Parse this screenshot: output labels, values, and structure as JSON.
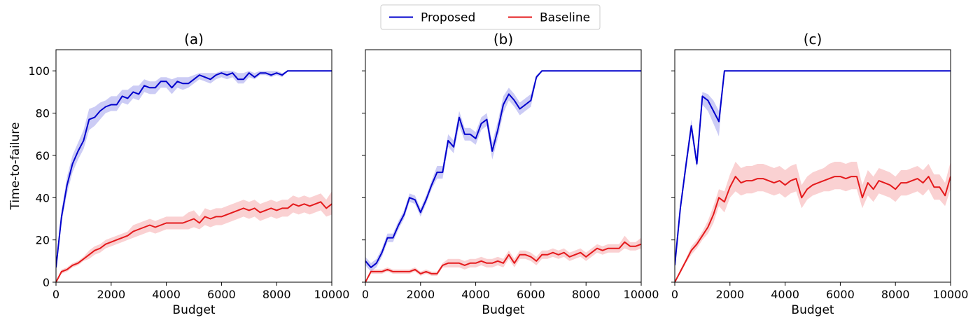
{
  "legend": {
    "entries": [
      {
        "name": "Proposed",
        "color": "#0000cc"
      },
      {
        "name": "Baseline",
        "color": "#e41a1c"
      }
    ],
    "placement": "top-center"
  },
  "chart_data": [
    {
      "type": "line",
      "title": "(a)",
      "xlabel": "Budget",
      "ylabel": "Time-to-failure",
      "xlim": [
        0,
        10000
      ],
      "ylim": [
        0,
        110
      ],
      "xticks": [
        0,
        2000,
        4000,
        6000,
        8000,
        10000
      ],
      "yticks": [
        0,
        20,
        40,
        60,
        80,
        100
      ],
      "series": [
        {
          "name": "Proposed",
          "color": "#0000cc",
          "x": [
            0,
            200,
            400,
            600,
            800,
            1000,
            1200,
            1400,
            1600,
            1800,
            2000,
            2200,
            2400,
            2600,
            2800,
            3000,
            3200,
            3400,
            3600,
            3800,
            4000,
            4200,
            4400,
            4600,
            4800,
            5000,
            5200,
            5400,
            5600,
            5800,
            6000,
            6200,
            6400,
            6600,
            6800,
            7000,
            7200,
            7400,
            7600,
            7800,
            8000,
            8200,
            8400,
            10000
          ],
          "y": [
            7,
            31,
            46,
            56,
            62,
            67,
            77,
            78,
            81,
            83,
            84,
            84,
            88,
            87,
            90,
            89,
            93,
            92,
            92,
            95,
            95,
            92,
            95,
            94,
            94,
            96,
            98,
            97,
            96,
            98,
            99,
            98,
            99,
            96,
            96,
            99,
            97,
            99,
            99,
            98,
            99,
            98,
            100,
            100
          ],
          "lower": [
            5,
            28,
            42,
            52,
            58,
            63,
            72,
            74,
            77,
            80,
            81,
            81,
            85,
            84,
            87,
            86,
            90,
            89,
            89,
            92,
            92,
            89,
            92,
            91,
            92,
            94,
            96,
            95,
            94,
            96,
            97,
            96,
            97,
            94,
            94,
            97,
            96,
            98,
            98,
            97,
            98,
            97,
            100,
            100
          ],
          "upper": [
            9,
            34,
            50,
            60,
            66,
            72,
            82,
            83,
            85,
            86,
            88,
            88,
            91,
            91,
            93,
            93,
            96,
            95,
            95,
            97,
            97,
            96,
            97,
            97,
            97,
            98,
            99,
            99,
            99,
            99,
            100,
            100,
            100,
            99,
            99,
            100,
            99,
            100,
            100,
            100,
            100,
            99,
            100,
            100
          ]
        },
        {
          "name": "Baseline",
          "color": "#e41a1c",
          "x": [
            0,
            200,
            400,
            600,
            800,
            1000,
            1200,
            1400,
            1600,
            1800,
            2000,
            2200,
            2400,
            2600,
            2800,
            3000,
            3200,
            3400,
            3600,
            3800,
            4000,
            4200,
            4400,
            4600,
            4800,
            5000,
            5200,
            5400,
            5600,
            5800,
            6000,
            6200,
            6400,
            6600,
            6800,
            7000,
            7200,
            7400,
            7600,
            7800,
            8000,
            8200,
            8400,
            8600,
            8800,
            9000,
            9200,
            9400,
            9600,
            9800,
            10000
          ],
          "y": [
            0,
            5,
            6,
            8,
            9,
            11,
            13,
            15,
            16,
            18,
            19,
            20,
            21,
            22,
            24,
            25,
            26,
            27,
            26,
            27,
            28,
            28,
            28,
            28,
            29,
            30,
            28,
            31,
            30,
            31,
            31,
            32,
            33,
            34,
            35,
            34,
            35,
            33,
            34,
            35,
            34,
            35,
            35,
            37,
            36,
            37,
            36,
            37,
            38,
            35,
            37
          ],
          "lower": [
            0,
            4,
            5,
            7,
            8,
            10,
            11,
            13,
            14,
            16,
            17,
            18,
            19,
            20,
            21,
            22,
            23,
            24,
            23,
            24,
            25,
            25,
            25,
            25,
            25,
            26,
            25,
            27,
            26,
            27,
            27,
            28,
            29,
            30,
            31,
            30,
            31,
            29,
            30,
            31,
            30,
            31,
            31,
            33,
            32,
            33,
            32,
            33,
            34,
            31,
            32
          ],
          "upper": [
            0,
            6,
            7,
            9,
            10,
            12,
            15,
            17,
            18,
            20,
            21,
            22,
            23,
            24,
            27,
            28,
            29,
            30,
            29,
            30,
            31,
            31,
            31,
            31,
            33,
            34,
            31,
            35,
            34,
            35,
            35,
            36,
            37,
            38,
            39,
            38,
            39,
            37,
            38,
            39,
            38,
            39,
            39,
            41,
            40,
            41,
            40,
            41,
            42,
            39,
            43
          ]
        }
      ]
    },
    {
      "type": "line",
      "title": "(b)",
      "xlabel": "Budget",
      "ylabel": "",
      "xlim": [
        0,
        10000
      ],
      "ylim": [
        0,
        110
      ],
      "xticks": [
        0,
        2000,
        4000,
        6000,
        8000,
        10000
      ],
      "yticks": [
        0,
        20,
        40,
        60,
        80,
        100
      ],
      "series": [
        {
          "name": "Proposed",
          "color": "#0000cc",
          "x": [
            0,
            200,
            400,
            600,
            800,
            1000,
            1200,
            1400,
            1600,
            1800,
            2000,
            2200,
            2400,
            2600,
            2800,
            3000,
            3200,
            3400,
            3600,
            3800,
            4000,
            4200,
            4400,
            4600,
            4800,
            5000,
            5200,
            5400,
            5600,
            5800,
            6000,
            6200,
            6400,
            10000
          ],
          "y": [
            10,
            7,
            9,
            14,
            21,
            21,
            27,
            32,
            40,
            39,
            33,
            39,
            46,
            52,
            52,
            67,
            64,
            78,
            70,
            70,
            68,
            75,
            77,
            62,
            72,
            84,
            89,
            86,
            82,
            84,
            86,
            97,
            100,
            100
          ],
          "lower": [
            8,
            5,
            7,
            12,
            19,
            19,
            25,
            30,
            38,
            37,
            31,
            37,
            44,
            49,
            49,
            64,
            61,
            74,
            67,
            67,
            65,
            72,
            74,
            58,
            68,
            80,
            86,
            83,
            79,
            81,
            83,
            96,
            100,
            100
          ],
          "upper": [
            12,
            9,
            11,
            16,
            23,
            23,
            29,
            34,
            42,
            41,
            35,
            41,
            48,
            55,
            55,
            70,
            67,
            81,
            73,
            73,
            71,
            78,
            80,
            66,
            76,
            88,
            92,
            89,
            85,
            87,
            89,
            98,
            100,
            100
          ]
        },
        {
          "name": "Baseline",
          "color": "#e41a1c",
          "x": [
            0,
            200,
            400,
            600,
            800,
            1000,
            1200,
            1400,
            1600,
            1800,
            2000,
            2200,
            2400,
            2600,
            2800,
            3000,
            3200,
            3400,
            3600,
            3800,
            4000,
            4200,
            4400,
            4600,
            4800,
            5000,
            5200,
            5400,
            5600,
            5800,
            6000,
            6200,
            6400,
            6600,
            6800,
            7000,
            7200,
            7400,
            7600,
            7800,
            8000,
            8200,
            8400,
            8600,
            8800,
            9000,
            9200,
            9400,
            9600,
            9800,
            10000
          ],
          "y": [
            0,
            5,
            5,
            5,
            6,
            5,
            5,
            5,
            5,
            6,
            4,
            5,
            4,
            4,
            8,
            9,
            9,
            9,
            8,
            9,
            9,
            10,
            9,
            9,
            10,
            9,
            13,
            9,
            13,
            13,
            12,
            10,
            13,
            13,
            14,
            13,
            14,
            12,
            13,
            14,
            12,
            14,
            16,
            15,
            16,
            16,
            16,
            19,
            17,
            17,
            18
          ],
          "lower": [
            0,
            4,
            4,
            4,
            5,
            4,
            4,
            4,
            4,
            5,
            3,
            4,
            3,
            3,
            7,
            7,
            7,
            7,
            6,
            7,
            7,
            8,
            7,
            7,
            8,
            7,
            11,
            7,
            11,
            11,
            10,
            8,
            11,
            11,
            12,
            11,
            12,
            10,
            11,
            12,
            10,
            12,
            14,
            13,
            14,
            14,
            14,
            16,
            15,
            15,
            16
          ],
          "upper": [
            0,
            6,
            6,
            6,
            7,
            6,
            6,
            6,
            6,
            7,
            5,
            6,
            5,
            5,
            9,
            11,
            11,
            11,
            10,
            11,
            11,
            12,
            11,
            11,
            12,
            11,
            15,
            11,
            15,
            15,
            14,
            12,
            15,
            15,
            16,
            15,
            16,
            14,
            15,
            16,
            14,
            16,
            18,
            17,
            18,
            18,
            18,
            22,
            19,
            19,
            21
          ]
        }
      ]
    },
    {
      "type": "line",
      "title": "(c)",
      "xlabel": "Budget",
      "ylabel": "",
      "xlim": [
        0,
        10000
      ],
      "ylim": [
        0,
        110
      ],
      "xticks": [
        0,
        2000,
        4000,
        6000,
        8000,
        10000
      ],
      "yticks": [
        0,
        20,
        40,
        60,
        80,
        100
      ],
      "series": [
        {
          "name": "Proposed",
          "color": "#0000cc",
          "x": [
            0,
            200,
            400,
            600,
            800,
            1000,
            1200,
            1400,
            1600,
            1800,
            10000
          ],
          "y": [
            8,
            35,
            55,
            74,
            56,
            88,
            86,
            81,
            76,
            100,
            100
          ],
          "lower": [
            6,
            33,
            52,
            71,
            54,
            84,
            81,
            75,
            69,
            100,
            100
          ],
          "upper": [
            10,
            37,
            58,
            77,
            58,
            90,
            89,
            86,
            81,
            100,
            100
          ]
        },
        {
          "name": "Baseline",
          "color": "#e41a1c",
          "x": [
            0,
            200,
            400,
            600,
            800,
            1000,
            1200,
            1400,
            1600,
            1800,
            2000,
            2200,
            2400,
            2600,
            2800,
            3000,
            3200,
            3400,
            3600,
            3800,
            4000,
            4200,
            4400,
            4600,
            4800,
            5000,
            5200,
            5400,
            5600,
            5800,
            6000,
            6200,
            6400,
            6600,
            6800,
            7000,
            7200,
            7400,
            7600,
            7800,
            8000,
            8200,
            8400,
            8600,
            8800,
            9000,
            9200,
            9400,
            9600,
            9800,
            10000
          ],
          "y": [
            0,
            5,
            10,
            15,
            18,
            22,
            26,
            32,
            40,
            38,
            45,
            50,
            47,
            48,
            48,
            49,
            49,
            48,
            47,
            48,
            46,
            48,
            49,
            40,
            44,
            46,
            47,
            48,
            49,
            50,
            50,
            49,
            50,
            50,
            40,
            47,
            44,
            48,
            47,
            46,
            44,
            47,
            47,
            48,
            49,
            47,
            50,
            45,
            45,
            41,
            50
          ],
          "lower": [
            0,
            4,
            9,
            13,
            16,
            20,
            23,
            28,
            36,
            33,
            40,
            43,
            41,
            42,
            42,
            43,
            43,
            42,
            41,
            42,
            40,
            42,
            43,
            35,
            39,
            41,
            42,
            43,
            43,
            44,
            44,
            43,
            44,
            44,
            35,
            41,
            38,
            42,
            41,
            40,
            38,
            41,
            41,
            42,
            43,
            41,
            44,
            39,
            39,
            36,
            44
          ],
          "upper": [
            0,
            6,
            11,
            17,
            20,
            24,
            29,
            36,
            44,
            43,
            51,
            57,
            54,
            55,
            55,
            56,
            56,
            55,
            54,
            55,
            53,
            55,
            56,
            46,
            50,
            52,
            53,
            54,
            56,
            57,
            57,
            56,
            57,
            57,
            46,
            53,
            50,
            54,
            53,
            52,
            50,
            53,
            53,
            54,
            55,
            53,
            56,
            51,
            51,
            47,
            57
          ]
        }
      ]
    }
  ]
}
